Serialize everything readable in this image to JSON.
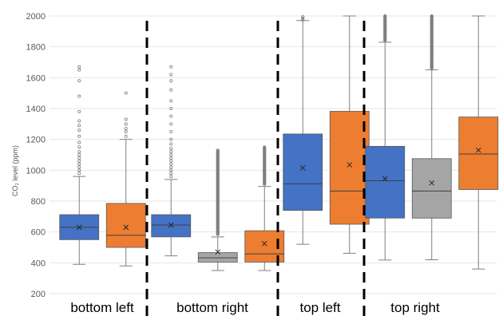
{
  "chart_data": {
    "type": "box",
    "ylabel": "CO₂ level (ppm)",
    "ylim": [
      200,
      2000
    ],
    "yticks": [
      200,
      400,
      600,
      800,
      1000,
      1200,
      1400,
      1600,
      1800,
      2000
    ],
    "grid": true,
    "groups": [
      {
        "label": "bottom left",
        "boxes": [
          {
            "color": "#4472C4",
            "whisker_low": 390,
            "q1": 550,
            "median": 630,
            "q3": 712,
            "whisker_high": 960,
            "mean": 630,
            "outliers": [
              980,
              1000,
              1020,
              1040,
              1060,
              1080,
              1100,
              1120,
              1150,
              1180,
              1220,
              1260,
              1290,
              1320,
              1380,
              1480,
              1580,
              1650,
              1670
            ]
          },
          {
            "color": "#ED7D31",
            "whisker_low": 380,
            "q1": 500,
            "median": 578,
            "q3": 785,
            "whisker_high": 1200,
            "mean": 630,
            "outliers": [
              1220,
              1250,
              1270,
              1300,
              1330,
              1500
            ]
          }
        ]
      },
      {
        "label": "bottom right",
        "boxes": [
          {
            "color": "#4472C4",
            "whisker_low": 445,
            "q1": 568,
            "median": 645,
            "q3": 712,
            "whisker_high": 940,
            "mean": 645,
            "outliers": [
              960,
              980,
              1000,
              1020,
              1040,
              1060,
              1080,
              1100,
              1120,
              1140,
              1170,
              1200,
              1250,
              1300,
              1350,
              1400,
              1450,
              1520,
              1580,
              1620,
              1670
            ]
          },
          {
            "color": "#A5A5A5",
            "whisker_low": 350,
            "q1": 405,
            "median": 432,
            "q3": 466,
            "whisker_high": 568,
            "mean": 470,
            "outliers_range": [
              585,
              1130
            ]
          },
          {
            "color": "#ED7D31",
            "whisker_low": 350,
            "q1": 405,
            "median": 458,
            "q3": 608,
            "whisker_high": 895,
            "mean": 525,
            "outliers_range": [
              910,
              1150
            ]
          }
        ]
      },
      {
        "label": "top left",
        "boxes": [
          {
            "color": "#4472C4",
            "whisker_low": 520,
            "q1": 740,
            "median": 912,
            "q3": 1235,
            "whisker_high": 1970,
            "mean": 1015,
            "outliers": [
              1975,
              1985,
              1995
            ]
          },
          {
            "color": "#ED7D31",
            "whisker_low": 462,
            "q1": 650,
            "median": 865,
            "q3": 1382,
            "whisker_high": 2000,
            "mean": 1035,
            "outliers": []
          }
        ]
      },
      {
        "label": "top right",
        "boxes": [
          {
            "color": "#4472C4",
            "whisker_low": 418,
            "q1": 690,
            "median": 932,
            "q3": 1155,
            "whisker_high": 1830,
            "mean": 945,
            "outliers_range": [
              1840,
              2000
            ]
          },
          {
            "color": "#A5A5A5",
            "whisker_low": 420,
            "q1": 690,
            "median": 865,
            "q3": 1075,
            "whisker_high": 1650,
            "mean": 918,
            "outliers_range": [
              1660,
              2000
            ]
          },
          {
            "color": "#ED7D31",
            "whisker_low": 360,
            "q1": 875,
            "median": 1105,
            "q3": 1345,
            "whisker_high": 2000,
            "mean": 1130,
            "outliers": []
          }
        ]
      }
    ]
  }
}
